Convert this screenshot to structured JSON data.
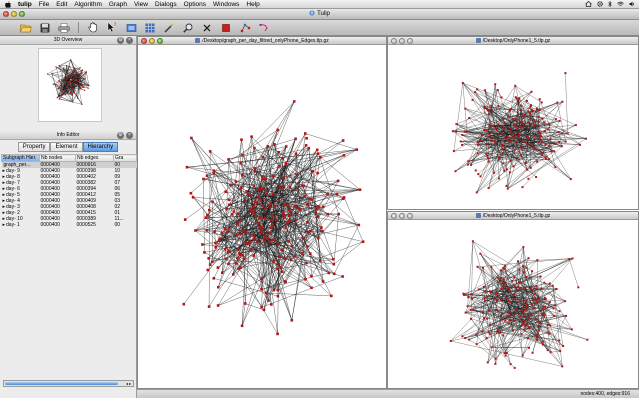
{
  "menubar": {
    "app_name": "tulip",
    "items": [
      "File",
      "Edit",
      "Algorithm",
      "Graph",
      "View",
      "Dialogs",
      "Options",
      "Windows",
      "Help"
    ]
  },
  "window": {
    "title": "Tulip"
  },
  "toolbar": {
    "icons": [
      "open-folder-icon",
      "save-icon",
      "print-icon",
      "hand-tool-icon",
      "pointer-tool-icon",
      "rectangle-select-icon",
      "grid-icon",
      "magic-wand-icon",
      "zoom-icon",
      "delete-icon",
      "node-add-icon",
      "edge-add-icon",
      "edge-bend-icon"
    ]
  },
  "overview": {
    "title": "3D Overview"
  },
  "info_editor": {
    "title": "Info Editor",
    "tabs": [
      "Property",
      "Element",
      "Hierarchy"
    ],
    "active_tab": "Hierarchy",
    "columns": [
      "Subgraph Hier.",
      "Nb nodes",
      "Nb edges",
      "Gra"
    ],
    "rows": [
      {
        "expander": "",
        "name": "graph_per...",
        "nodes": "0000400",
        "edges": "0000916",
        "extra": "00"
      },
      {
        "expander": "▸",
        "name": "day- 9",
        "nodes": "0000400",
        "edges": "0000398",
        "extra": "10"
      },
      {
        "expander": "▸",
        "name": "day- 8",
        "nodes": "0000400",
        "edges": "0000402",
        "extra": "09"
      },
      {
        "expander": "▸",
        "name": "day- 7",
        "nodes": "0000400",
        "edges": "0000382",
        "extra": "07"
      },
      {
        "expander": "▸",
        "name": "day- 6",
        "nodes": "0000400",
        "edges": "0000394",
        "extra": "06"
      },
      {
        "expander": "▸",
        "name": "day- 5",
        "nodes": "0000400",
        "edges": "0000412",
        "extra": "05"
      },
      {
        "expander": "▸",
        "name": "day- 4",
        "nodes": "0000400",
        "edges": "0000409",
        "extra": "03"
      },
      {
        "expander": "▸",
        "name": "day- 3",
        "nodes": "0000400",
        "edges": "0000408",
        "extra": "02"
      },
      {
        "expander": "▸",
        "name": "day- 2",
        "nodes": "0000400",
        "edges": "0000415",
        "extra": "01"
      },
      {
        "expander": "▸",
        "name": "day- 10",
        "nodes": "0000400",
        "edges": "0000389",
        "extra": "11..."
      },
      {
        "expander": "▸",
        "name": "day- 1",
        "nodes": "0000400",
        "edges": "0000525",
        "extra": "00"
      }
    ]
  },
  "views": {
    "main_title": "/Desktop/graph_per_day_filtred_onlyPhone_Edges.tlp.gz",
    "top_right_title": "/Desktop/OnlyPhone1_5.tlp.gz",
    "bottom_right_title": "/Desktop/OnlyPhone1_5.tlp.gz"
  },
  "status": {
    "text": "nodes:400, edges:916"
  },
  "colors": {
    "node": "#b01818",
    "edge": "#1a1a1a",
    "accent": "#5f9ddf"
  }
}
